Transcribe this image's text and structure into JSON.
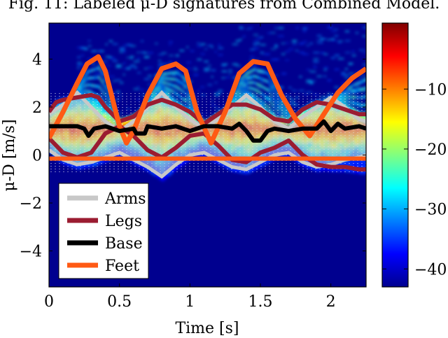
{
  "caption": "Fig. 11: Labeled μ-D signatures from Combined Model.",
  "chart_data": {
    "type": "heatmap",
    "xlabel": "Time [s]",
    "ylabel": "μ-D [m/s]",
    "xlim": [
      0,
      2.25
    ],
    "ylim": [
      -5.5,
      5.5
    ],
    "xticks": [
      0,
      0.5,
      1,
      1.5,
      2
    ],
    "xtick_labels": [
      "0",
      "0.5",
      "1",
      "1.5",
      "2"
    ],
    "yticks": [
      4,
      2,
      0,
      -2,
      -4
    ],
    "ytick_labels": [
      "4",
      "2",
      "0",
      "−2",
      "−4"
    ],
    "colorbar": {
      "range": [
        -43,
        1
      ],
      "ticks": [
        -10,
        -20,
        -30,
        -40
      ],
      "tick_labels": [
        "−10",
        "−20",
        "−30",
        "−40"
      ],
      "colormap": "jet"
    },
    "legend": {
      "placement": "bottom-left"
    },
    "series": [
      {
        "name": "Arms",
        "color": "#c8c8c8",
        "style": "band",
        "x": [
          0,
          0.1,
          0.2,
          0.3,
          0.4,
          0.5,
          0.6,
          0.7,
          0.8,
          0.9,
          1.0,
          1.1,
          1.2,
          1.3,
          1.4,
          1.5,
          1.6,
          1.7,
          1.8,
          1.9,
          2.0,
          2.1,
          2.2,
          2.25
        ],
        "upper": [
          1.7,
          2.1,
          2.6,
          2.0,
          1.4,
          1.0,
          1.4,
          2.0,
          2.6,
          2.0,
          1.5,
          1.1,
          1.5,
          2.0,
          2.5,
          2.0,
          1.4,
          1.1,
          1.6,
          2.0,
          2.4,
          2.0,
          1.5,
          1.4
        ],
        "lower": [
          0.2,
          -0.2,
          -0.4,
          -0.3,
          -0.1,
          0.1,
          -0.2,
          -0.5,
          -0.9,
          -0.4,
          0.0,
          0.1,
          -0.2,
          -0.5,
          -0.6,
          -0.3,
          0.0,
          0.1,
          -0.3,
          -0.5,
          -0.4,
          -0.2,
          -0.1,
          0.0
        ]
      },
      {
        "name": "Legs",
        "color": "#9b1c31",
        "style": "pair",
        "x": [
          0,
          0.05,
          0.1,
          0.2,
          0.3,
          0.35,
          0.4,
          0.5,
          0.6,
          0.7,
          0.8,
          0.9,
          1.0,
          1.1,
          1.2,
          1.3,
          1.4,
          1.5,
          1.6,
          1.7,
          1.8,
          1.9,
          2.0,
          2.1,
          2.2,
          2.25
        ],
        "upper": [
          1.8,
          2.2,
          2.3,
          2.4,
          2.5,
          2.4,
          2.0,
          1.4,
          1.6,
          2.1,
          2.3,
          2.1,
          1.8,
          1.3,
          1.7,
          2.1,
          2.1,
          1.9,
          1.5,
          1.4,
          1.9,
          2.2,
          2.1,
          1.9,
          1.7,
          1.7
        ],
        "lower": [
          0.7,
          0.4,
          0.1,
          -0.1,
          0.1,
          0.5,
          0.9,
          1.2,
          0.8,
          0.2,
          -0.1,
          0.3,
          0.8,
          0.9,
          0.4,
          -0.2,
          -0.3,
          0.1,
          0.3,
          0.6,
          0.0,
          -0.4,
          -0.5,
          -0.5,
          -0.6,
          -0.6
        ]
      },
      {
        "name": "Base",
        "color": "#000000",
        "style": "line",
        "x": [
          0,
          0.1,
          0.2,
          0.25,
          0.28,
          0.32,
          0.4,
          0.5,
          0.6,
          0.62,
          0.68,
          0.7,
          0.8,
          0.9,
          1.0,
          1.1,
          1.2,
          1.3,
          1.35,
          1.4,
          1.45,
          1.5,
          1.55,
          1.6,
          1.7,
          1.8,
          1.9,
          1.95,
          2.0,
          2.05,
          2.1,
          2.2,
          2.25
        ],
        "y": [
          1.2,
          1.2,
          1.2,
          1.1,
          0.8,
          1.1,
          1.2,
          1.0,
          1.1,
          0.9,
          0.9,
          1.2,
          1.1,
          1.2,
          1.0,
          1.2,
          1.2,
          1.1,
          1.3,
          1.0,
          0.6,
          0.6,
          1.0,
          1.1,
          1.0,
          1.1,
          1.1,
          1.4,
          1.0,
          1.3,
          1.1,
          1.2,
          1.1
        ]
      },
      {
        "name": "Feet",
        "color": "#ff5a14",
        "style": "pair",
        "x_upper": [
          0,
          0.1,
          0.2,
          0.27,
          0.35,
          0.4,
          0.5,
          0.55,
          0.6,
          0.7,
          0.8,
          0.9,
          0.97,
          1.05,
          1.15,
          1.25,
          1.35,
          1.45,
          1.55,
          1.65,
          1.75,
          1.85,
          1.95,
          2.05,
          2.15,
          2.25
        ],
        "y_upper": [
          0.7,
          1.8,
          3.0,
          3.8,
          4.1,
          3.5,
          1.2,
          0.5,
          1.0,
          2.5,
          3.6,
          3.8,
          3.5,
          1.8,
          0.5,
          1.8,
          3.4,
          3.9,
          3.8,
          2.5,
          1.5,
          0.8,
          1.7,
          2.6,
          3.2,
          3.6
        ],
        "x_lower": [
          0,
          2.25
        ],
        "y_lower": [
          -0.15,
          -0.15
        ]
      }
    ]
  }
}
